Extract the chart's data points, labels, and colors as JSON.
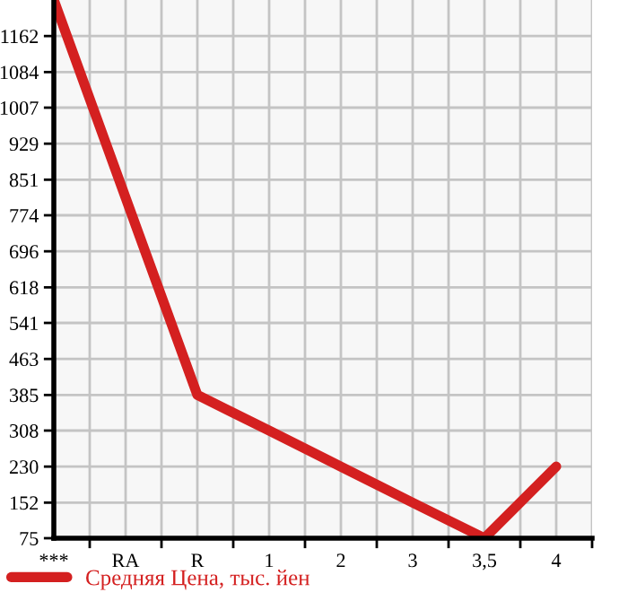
{
  "chart_data": {
    "type": "line",
    "categories": [
      "***",
      "RA",
      "R",
      "1",
      "2",
      "3",
      "3,5",
      "4"
    ],
    "series": [
      {
        "name": "Средняя Цена, тыс. йен",
        "color": "#d42020",
        "values": [
          1240,
          812,
          385,
          308,
          230,
          152,
          75,
          230
        ]
      }
    ],
    "ylim": [
      75,
      1240
    ],
    "yticks": [
      75,
      152,
      230,
      308,
      385,
      463,
      541,
      618,
      696,
      774,
      851,
      929,
      1007,
      1084,
      1162
    ],
    "grid": true,
    "legend": "bottom left",
    "marker": "none",
    "line_style": "solid"
  }
}
